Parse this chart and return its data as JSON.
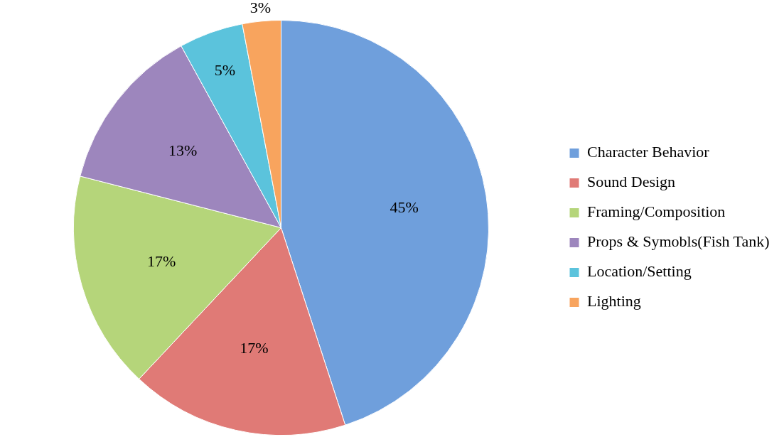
{
  "chart_data": {
    "type": "pie",
    "categories": [
      "Character Behavior",
      "Sound Design",
      "Framing/Composition",
      "Props & Symobls(Fish Tank)",
      "Location/Setting",
      "Lighting"
    ],
    "values": [
      45,
      17,
      17,
      13,
      5,
      3
    ],
    "colors": [
      "#6f9fdc",
      "#e07a76",
      "#b5d57a",
      "#9d86bd",
      "#5bc3dc",
      "#f8a45e"
    ],
    "value_labels": [
      "45%",
      "17%",
      "17%",
      "13%",
      "5%",
      "3%"
    ],
    "legend": "right"
  }
}
